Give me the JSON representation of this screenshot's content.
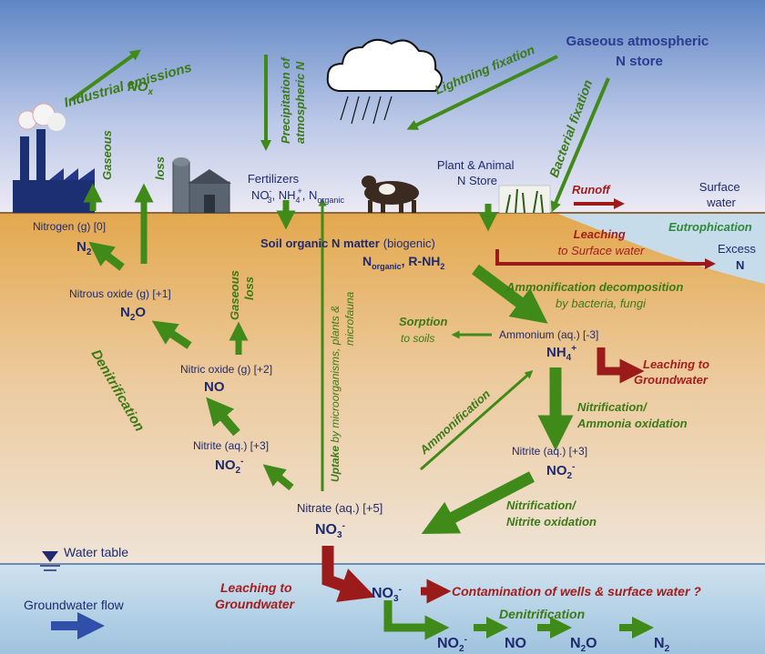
{
  "atmosphere": {
    "industrial_emissions": "Industrial emissions",
    "nox": "NO",
    "nox_sub": "x",
    "precipitation": [
      "Precipitation of",
      "atmospheric N"
    ],
    "lightning": "Lightning fixation",
    "gaseous_store": [
      "Gaseous atmospheric",
      "N store"
    ],
    "bacterial": "Bacterial fixation",
    "gaseous_loss_1": [
      "Gaseous",
      "loss"
    ],
    "gaseous_loss_2": [
      "Gaseous",
      "loss"
    ]
  },
  "surface": {
    "fertilizers": "Fertilizers",
    "fert_formula": {
      "a": "NO",
      "a_sup": "-",
      "a_sub": "3",
      "b": ", NH",
      "b_sub": "4",
      "b_sup": "+",
      "c": ", N",
      "c_sub": "organic"
    },
    "plant_animal": [
      "Plant & Animal",
      "N Store"
    ],
    "runoff": "Runoff",
    "surface_water": [
      "Surface",
      "water"
    ],
    "eutrophication": "Eutrophication",
    "excess": "Excess",
    "excess_n": "N"
  },
  "soil": {
    "nitrogen_g": "Nitrogen (g)  [0]",
    "n2": "N",
    "n2_sub": "2",
    "nitrous_oxide": "Nitrous oxide (g)  [+1]",
    "n2o": {
      "a": "N",
      "sub": "2",
      "b": "O"
    },
    "nitric_oxide": "Nitric oxide (g)  [+2]",
    "no": "NO",
    "denitrification": "Denitrification",
    "nitrite_left": "Nitrite (aq.)  [+3]",
    "no2_left": {
      "a": "NO",
      "sub": "2",
      "sup": "-"
    },
    "soil_organic_1": "Soil  organic  N  matter",
    "soil_organic_2": "(biogenic)",
    "n_organic": {
      "a": "N",
      "sub": "organic",
      "b": ",  R-NH",
      "sub2": "2"
    },
    "leaching_sw_1": "Leaching",
    "leaching_sw_2": "to Surface water",
    "uptake": "Uptake",
    "uptake_rest": " by microorganisms, plants &",
    "microfauna": "microfauna",
    "ammonification_decomp": "Ammonification decomposition",
    "by_bacteria": "by bacteria, fungi",
    "sorption": "Sorption",
    "to_soils": "to soils",
    "ammonium": "Ammonium (aq.) [-3]",
    "nh4": {
      "a": "NH",
      "sub": "4",
      "sup": "+"
    },
    "leaching_gw_right": [
      "Leaching to",
      "Groundwater"
    ],
    "ammonification": "Ammonification",
    "nitrification_1": [
      "Nitrification/",
      "Ammonia oxidation"
    ],
    "nitrite_right": "Nitrite (aq.)  [+3]",
    "no2_right": {
      "a": "NO",
      "sub": "2",
      "sup": "-"
    },
    "nitrate": "Nitrate (aq.)  [+5]",
    "no3": {
      "a": "NO",
      "sub": "3",
      "sup": "-"
    },
    "nitrification_2": [
      "Nitrification/",
      "Nitrite oxidation"
    ]
  },
  "groundwater": {
    "water_table": "Water table",
    "gw_flow": "Groundwater flow",
    "leaching_gw": [
      "Leaching to",
      "Groundwater"
    ],
    "no3": {
      "a": "NO",
      "sub": "3",
      "sup": "-"
    },
    "contamination": "Contamination of wells & surface water ?",
    "denitrification": "Denitrification",
    "chain_no2": {
      "a": "NO",
      "sub": "2",
      "sup": "-"
    },
    "chain_no": "NO",
    "chain_n2o": {
      "a": "N",
      "sub": "2",
      "b": "O"
    },
    "chain_n2": {
      "a": "N",
      "sub": "2"
    }
  },
  "colors": {
    "sky_top": "#5f86c4",
    "sky_bottom": "#eef0f6",
    "soil_top": "#e3a84e",
    "soil_bottom": "#efe3d6",
    "water": "#a9cce3",
    "green_arrow": "#3f8a19",
    "red_arrow": "#9b1b1b",
    "dark_text": "#1f2a6e",
    "green_text": "#3b7a16",
    "red_text": "#a51c1c"
  }
}
